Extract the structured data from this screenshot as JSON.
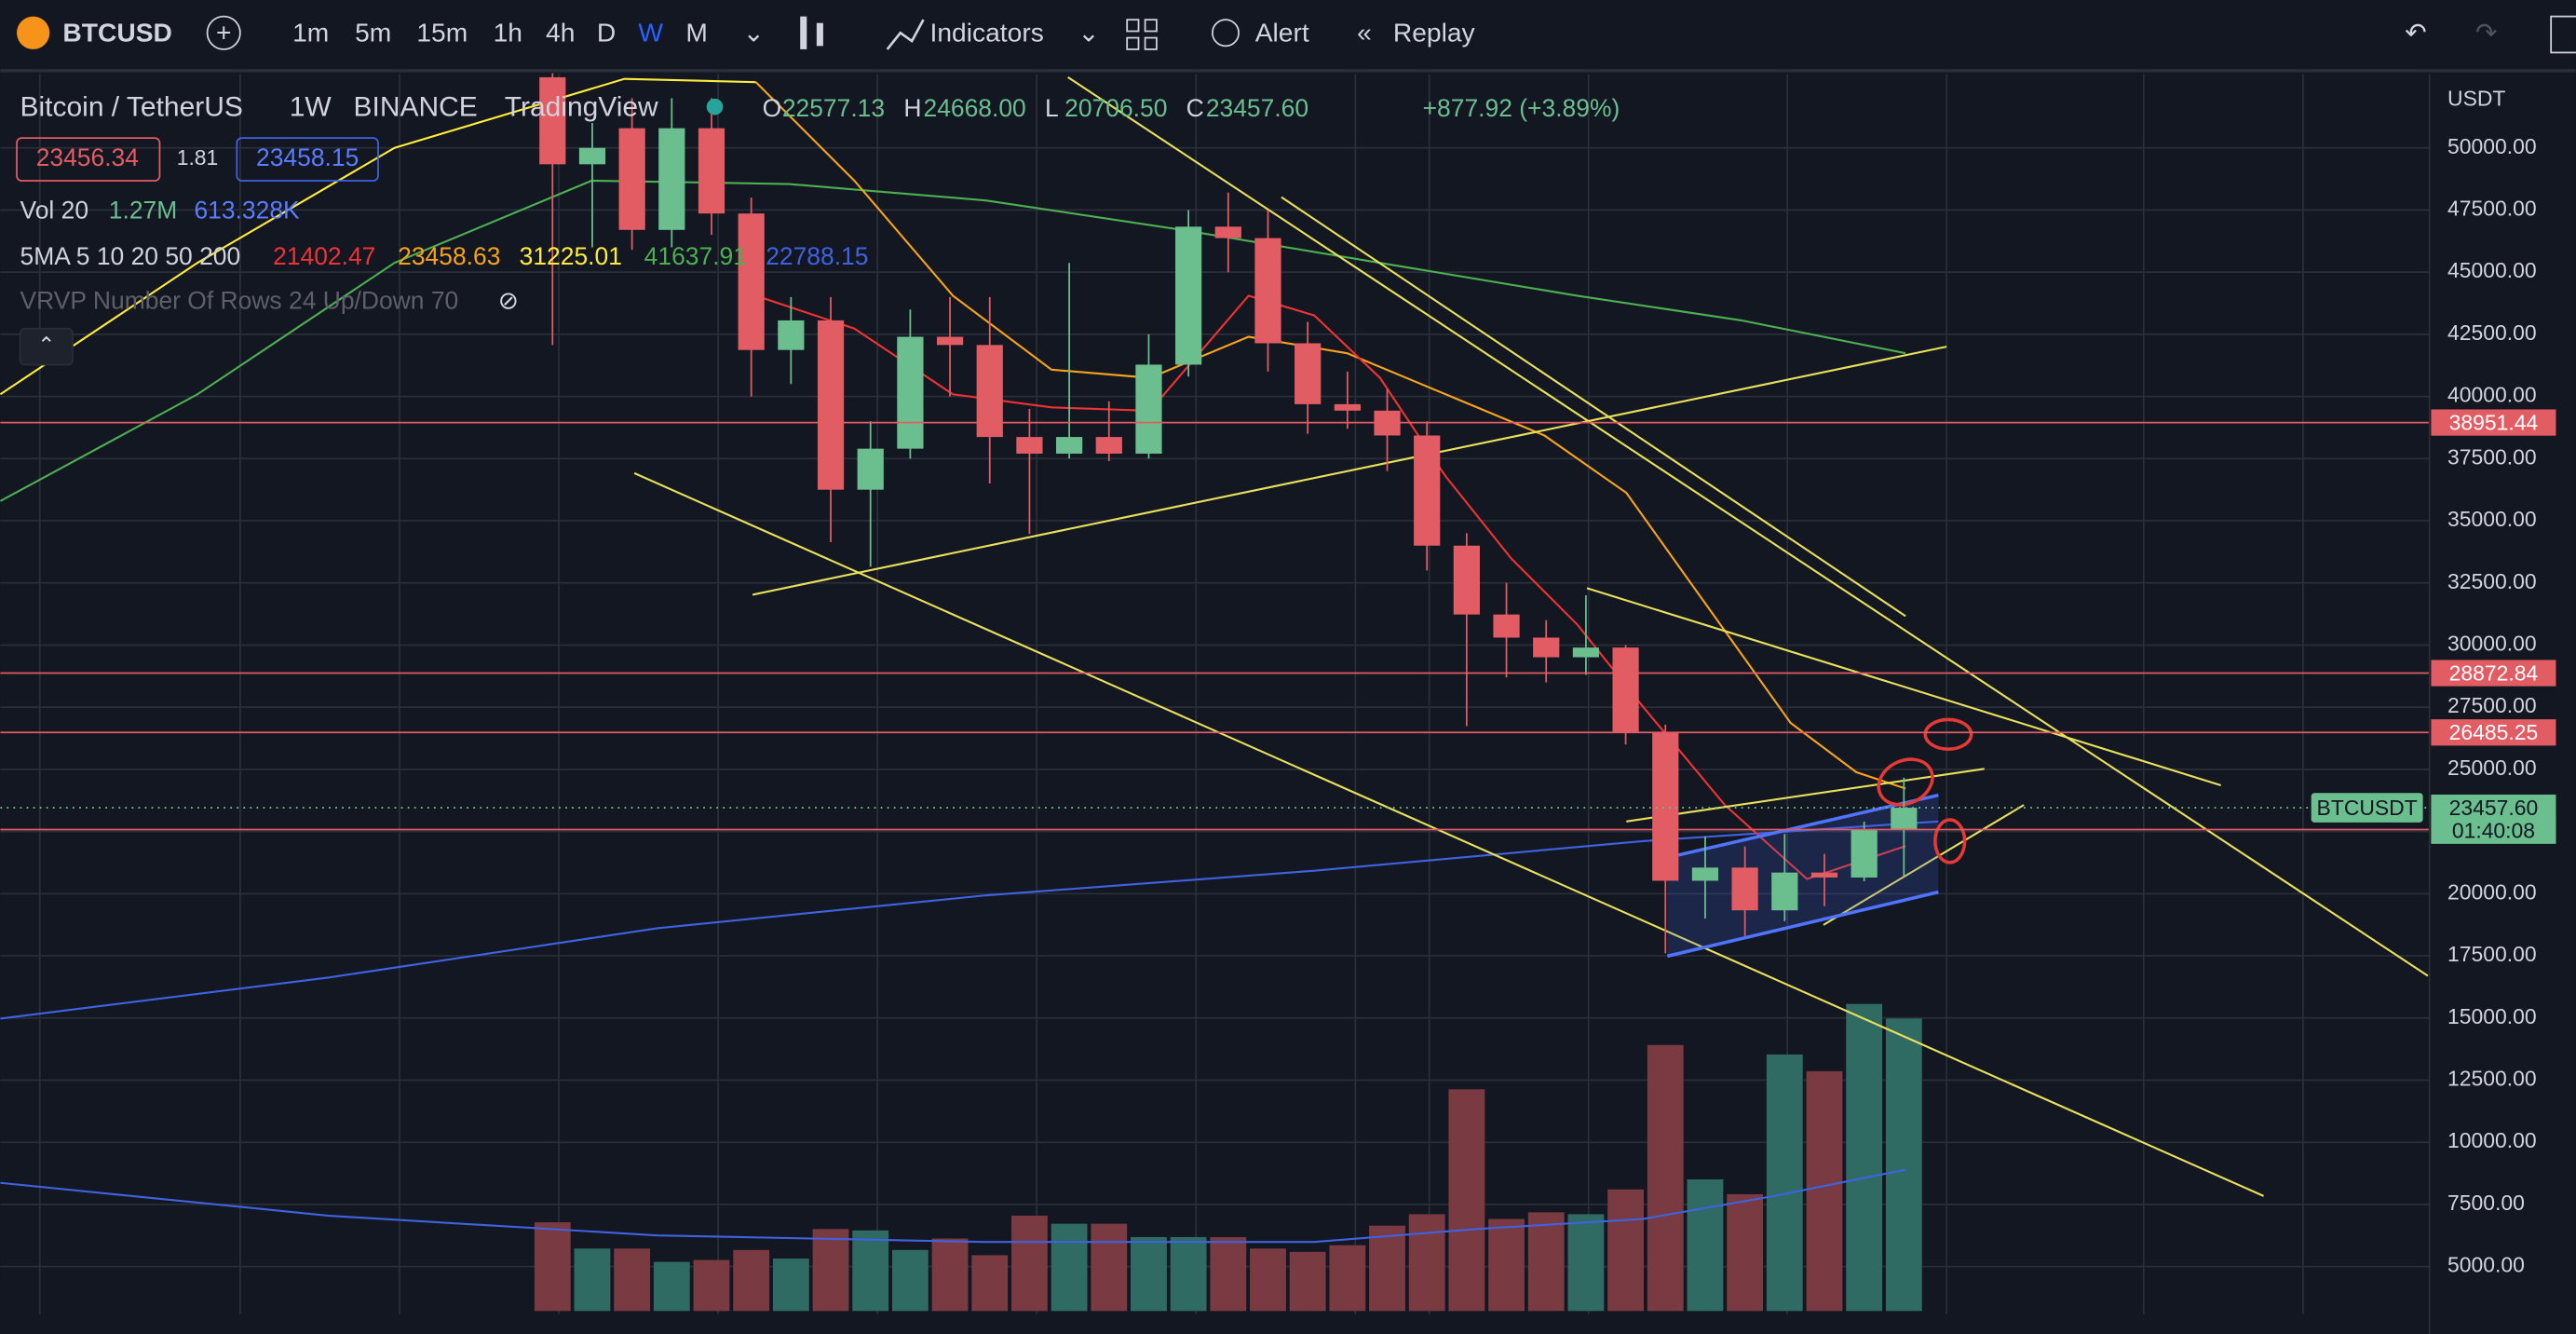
{
  "toolbar": {
    "symbol": "BTCUSD",
    "intervals": [
      "1m",
      "5m",
      "15m",
      "1h",
      "4h",
      "D",
      "W",
      "M"
    ],
    "active_interval": "W",
    "indicators": "Indicators",
    "alert": "Alert",
    "replay": "Replay"
  },
  "legend": {
    "pair": "Bitcoin / TetherUS",
    "interval": "1W",
    "exchange": "BINANCE",
    "source": "TradingView",
    "ohlc": [
      {
        "key": "O",
        "text": "22577.13"
      },
      {
        "key": "H",
        "text": "24668.00"
      },
      {
        "key": "L",
        "text": "20706.50"
      },
      {
        "key": "C",
        "text": "23457.60"
      }
    ],
    "change": "+877.92 (+3.89%)",
    "bid": "23456.34",
    "spread": "1.81",
    "ask": "23458.15",
    "vol_title": "Vol 20",
    "vol_values": [
      "1.27M",
      "613.328K"
    ],
    "ma_title": "5MA 5 10 20 50 200",
    "ma_values": [
      "21402.47",
      "23458.63",
      "31225.01",
      "41637.91",
      "22788.15"
    ],
    "vrvp": "VRVP Number Of Rows 24 Up/Down 70"
  },
  "chart_data": {
    "type": "candlestick",
    "currency": "USDT",
    "up_color": "#6bbf8f",
    "down_color": "#e25c63",
    "volume_up_color": "#2f6b63",
    "volume_down_color": "#7a3a42",
    "ylim": [
      2500,
      52500
    ],
    "yticks": [
      {
        "value": 5000,
        "label": "5000.00"
      },
      {
        "value": 7500,
        "label": "7500.00"
      },
      {
        "value": 10000,
        "label": "10000.00"
      },
      {
        "value": 12500,
        "label": "12500.00"
      },
      {
        "value": 15000,
        "label": "15000.00"
      },
      {
        "value": 17500,
        "label": "17500.00"
      },
      {
        "value": 20000,
        "label": "20000.00"
      },
      {
        "value": 22500,
        "label": "22500.00"
      },
      {
        "value": 25000,
        "label": "25000.00"
      },
      {
        "value": 27500,
        "label": "27500.00"
      },
      {
        "value": 30000,
        "label": "30000.00"
      },
      {
        "value": 32500,
        "label": "32500.00"
      },
      {
        "value": 35000,
        "label": "35000.00"
      },
      {
        "value": 37500,
        "label": "37500.00"
      },
      {
        "value": 40000,
        "label": "40000.00"
      },
      {
        "value": 42500,
        "label": "42500.00"
      },
      {
        "value": 45000,
        "label": "45000.00"
      },
      {
        "value": 47500,
        "label": "47500.00"
      },
      {
        "value": 50000,
        "label": "50000.00"
      }
    ],
    "open": [
      52840,
      49340,
      50790,
      46700,
      50790,
      47360,
      41870,
      43060,
      36250,
      37900,
      42400,
      42070,
      38370,
      37700,
      38370,
      37700,
      41280,
      46830,
      46370,
      42140,
      39690,
      39430,
      38430,
      34000,
      31230,
      30300,
      29510,
      29900,
      26470,
      20520,
      21050,
      19330,
      20850,
      20650,
      22577.13
    ],
    "high": [
      53000,
      51000,
      52000,
      52000,
      52000,
      48000,
      44000,
      44000,
      39000,
      43500,
      44000,
      44000,
      39500,
      45370,
      39800,
      42500,
      47500,
      48200,
      47500,
      43000,
      41000,
      40300,
      39000,
      34500,
      32500,
      31000,
      32000,
      30000,
      26800,
      22300,
      21900,
      22400,
      21600,
      22900,
      24668
    ],
    "low": [
      42070,
      46000,
      45900,
      46000,
      46500,
      40000,
      40500,
      34140,
      33150,
      37500,
      40000,
      36500,
      34470,
      37500,
      37400,
      37500,
      40800,
      45000,
      41000,
      38500,
      38700,
      37000,
      33000,
      26740,
      28700,
      28500,
      28800,
      26000,
      17600,
      19000,
      18300,
      18900,
      19500,
      20500,
      20706.5
    ],
    "close": [
      49340,
      50000,
      46700,
      50790,
      47360,
      41870,
      43060,
      36250,
      37900,
      42400,
      42070,
      38370,
      37700,
      38370,
      37700,
      41280,
      46830,
      46370,
      42140,
      39690,
      39430,
      38430,
      34000,
      31230,
      30300,
      29510,
      29900,
      26470,
      20520,
      21050,
      19330,
      20850,
      20650,
      22577,
      23457.6
    ],
    "volume": [
      186,
      131,
      131,
      103,
      107,
      128,
      110,
      172,
      169,
      128,
      152,
      117,
      200,
      183,
      183,
      155,
      155,
      155,
      131,
      124,
      138,
      179,
      203,
      465,
      193,
      207,
      203,
      255,
      558,
      276,
      245,
      538,
      503,
      644,
      613.328
    ],
    "price_lines": [
      38951.44,
      28872.84,
      26485.25,
      22577.81
    ],
    "last_price": {
      "value": 23457.6,
      "label": "23457.60"
    },
    "countdown": "01:40:08",
    "last_label": "BTCUSDT"
  }
}
